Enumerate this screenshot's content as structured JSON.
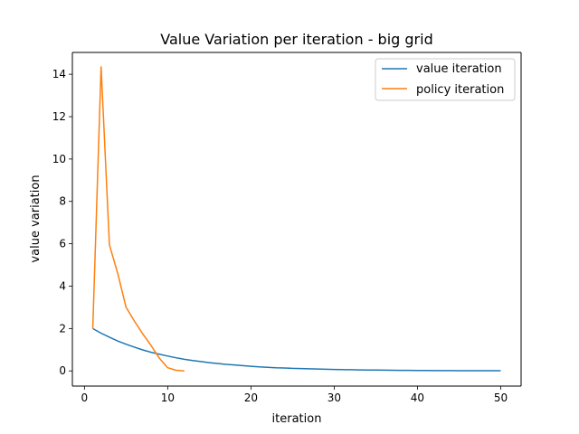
{
  "chart_data": {
    "type": "line",
    "title": "Value Variation per iteration - big grid",
    "xlabel": "iteration",
    "ylabel": "value variation",
    "xlim": [
      -1.45,
      52.45
    ],
    "ylim": [
      -0.716,
      15.03
    ],
    "xticks": [
      0,
      10,
      20,
      30,
      40,
      50
    ],
    "yticks": [
      0,
      2,
      4,
      6,
      8,
      10,
      12,
      14
    ],
    "grid": false,
    "legend_position": "top-right",
    "series": [
      {
        "name": "value iteration",
        "color": "#1f77b4",
        "x": [
          1,
          2,
          3,
          4,
          5,
          6,
          7,
          8,
          9,
          10,
          11,
          12,
          13,
          14,
          15,
          16,
          17,
          18,
          19,
          20,
          21,
          22,
          23,
          24,
          25,
          26,
          27,
          28,
          29,
          30,
          31,
          32,
          33,
          34,
          35,
          36,
          37,
          38,
          39,
          40,
          41,
          42,
          43,
          44,
          45,
          46,
          47,
          48,
          49,
          50
        ],
        "y": [
          2.0,
          1.78,
          1.59,
          1.41,
          1.26,
          1.12,
          0.99,
          0.88,
          0.79,
          0.7,
          0.62,
          0.55,
          0.49,
          0.44,
          0.39,
          0.35,
          0.31,
          0.28,
          0.25,
          0.22,
          0.19,
          0.17,
          0.15,
          0.14,
          0.12,
          0.11,
          0.1,
          0.09,
          0.08,
          0.07,
          0.06,
          0.055,
          0.049,
          0.044,
          0.039,
          0.034,
          0.031,
          0.027,
          0.024,
          0.022,
          0.019,
          0.017,
          0.015,
          0.014,
          0.012,
          0.011,
          0.01,
          0.009,
          0.008,
          0.007
        ]
      },
      {
        "name": "policy iteration",
        "color": "#ff7f0e",
        "x": [
          1,
          2,
          3,
          4,
          5,
          6,
          7,
          8,
          9,
          10,
          11,
          12
        ],
        "y": [
          2.0,
          14.35,
          5.95,
          4.6,
          3.0,
          2.35,
          1.75,
          1.2,
          0.6,
          0.15,
          0.03,
          0.0
        ]
      }
    ]
  }
}
